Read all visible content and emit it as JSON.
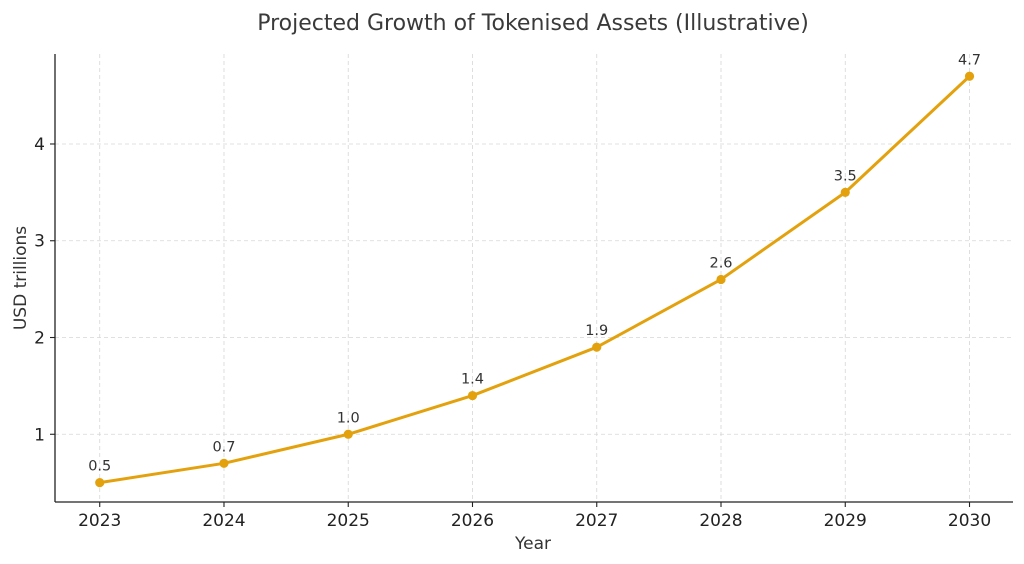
{
  "chart_data": {
    "type": "line",
    "title": "Projected Growth of Tokenised Assets (Illustrative)",
    "xlabel": "Year",
    "ylabel": "USD trillions",
    "x": [
      2023,
      2024,
      2025,
      2026,
      2027,
      2028,
      2029,
      2030
    ],
    "x_tick_labels": [
      "2023",
      "2024",
      "2025",
      "2026",
      "2027",
      "2028",
      "2029",
      "2030"
    ],
    "y_ticks": [
      1,
      2,
      3,
      4
    ],
    "y_tick_labels": [
      "1",
      "2",
      "3",
      "4"
    ],
    "xlim": [
      2022.64,
      2030.35
    ],
    "ylim": [
      0.3,
      4.93
    ],
    "grid": true,
    "series": [
      {
        "values": [
          0.5,
          0.7,
          1.0,
          1.4,
          1.9,
          2.6,
          3.5,
          4.7
        ],
        "data_labels": [
          "0.5",
          "0.7",
          "1.0",
          "1.4",
          "1.9",
          "2.6",
          "3.5",
          "4.7"
        ],
        "color": "#E3A20D",
        "marker": "circle"
      }
    ]
  }
}
